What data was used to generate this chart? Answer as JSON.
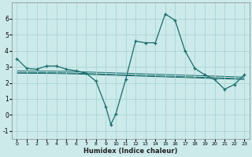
{
  "xlabel": "Humidex (Indice chaleur)",
  "background_color": "#cceaea",
  "grid_color": "#aad4d4",
  "line_color": "#1a6b6b",
  "xlim": [
    -0.5,
    23.5
  ],
  "ylim": [
    -1.5,
    7.0
  ],
  "yticks": [
    -1,
    0,
    1,
    2,
    3,
    4,
    5,
    6
  ],
  "xticks": [
    0,
    1,
    2,
    3,
    4,
    5,
    6,
    7,
    8,
    9,
    10,
    11,
    12,
    13,
    14,
    15,
    16,
    17,
    18,
    19,
    20,
    21,
    22,
    23
  ],
  "main_series": {
    "x": [
      0,
      1,
      2,
      3,
      4,
      5,
      6,
      7,
      8,
      9,
      9.5,
      10,
      11,
      12,
      13,
      14,
      15,
      16,
      17,
      18,
      19,
      20,
      21,
      22,
      23
    ],
    "y": [
      3.5,
      2.9,
      2.85,
      3.05,
      3.05,
      2.85,
      2.75,
      2.6,
      2.1,
      0.5,
      -0.6,
      0.05,
      2.2,
      4.6,
      4.5,
      4.5,
      6.3,
      5.9,
      4.0,
      2.9,
      2.5,
      2.2,
      1.6,
      1.9,
      2.5
    ]
  },
  "flat_lines": [
    {
      "x": [
        0,
        4,
        5,
        6,
        7,
        8,
        9,
        10,
        11,
        12,
        13,
        14,
        15,
        16,
        17,
        18,
        19,
        20,
        21,
        22,
        23
      ],
      "y": [
        2.75,
        2.73,
        2.72,
        2.7,
        2.68,
        2.66,
        2.64,
        2.62,
        2.6,
        2.58,
        2.56,
        2.54,
        2.52,
        2.5,
        2.48,
        2.46,
        2.44,
        2.42,
        2.4,
        2.38,
        2.36
      ]
    },
    {
      "x": [
        0,
        4,
        5,
        6,
        7,
        8,
        9,
        10,
        11,
        12,
        13,
        14,
        15,
        16,
        17,
        18,
        19,
        20,
        21,
        22,
        23
      ],
      "y": [
        2.65,
        2.63,
        2.62,
        2.6,
        2.58,
        2.56,
        2.54,
        2.52,
        2.5,
        2.48,
        2.46,
        2.44,
        2.42,
        2.4,
        2.38,
        2.36,
        2.34,
        2.32,
        2.3,
        2.28,
        2.26
      ]
    },
    {
      "x": [
        0,
        4,
        5,
        6,
        7,
        8,
        9,
        10,
        11,
        12,
        13,
        14,
        15,
        16,
        17,
        18,
        19,
        20,
        21,
        22,
        23
      ],
      "y": [
        2.6,
        2.58,
        2.57,
        2.55,
        2.53,
        2.51,
        2.49,
        2.47,
        2.45,
        2.43,
        2.41,
        2.39,
        2.37,
        2.35,
        2.33,
        2.31,
        2.29,
        2.27,
        2.25,
        2.23,
        2.21
      ]
    }
  ],
  "marker_series": {
    "x": [
      0,
      1,
      2,
      3,
      4,
      5,
      6,
      7,
      8,
      9,
      9.5,
      10,
      11,
      12,
      13,
      14,
      15,
      16,
      17,
      18,
      19,
      20,
      21,
      22,
      23
    ],
    "y": [
      3.5,
      2.9,
      2.85,
      3.05,
      3.05,
      2.85,
      2.75,
      2.6,
      2.1,
      0.5,
      -0.6,
      0.05,
      2.2,
      4.6,
      4.5,
      4.5,
      6.3,
      5.9,
      4.0,
      2.9,
      2.5,
      2.2,
      1.6,
      1.9,
      2.5
    ]
  }
}
